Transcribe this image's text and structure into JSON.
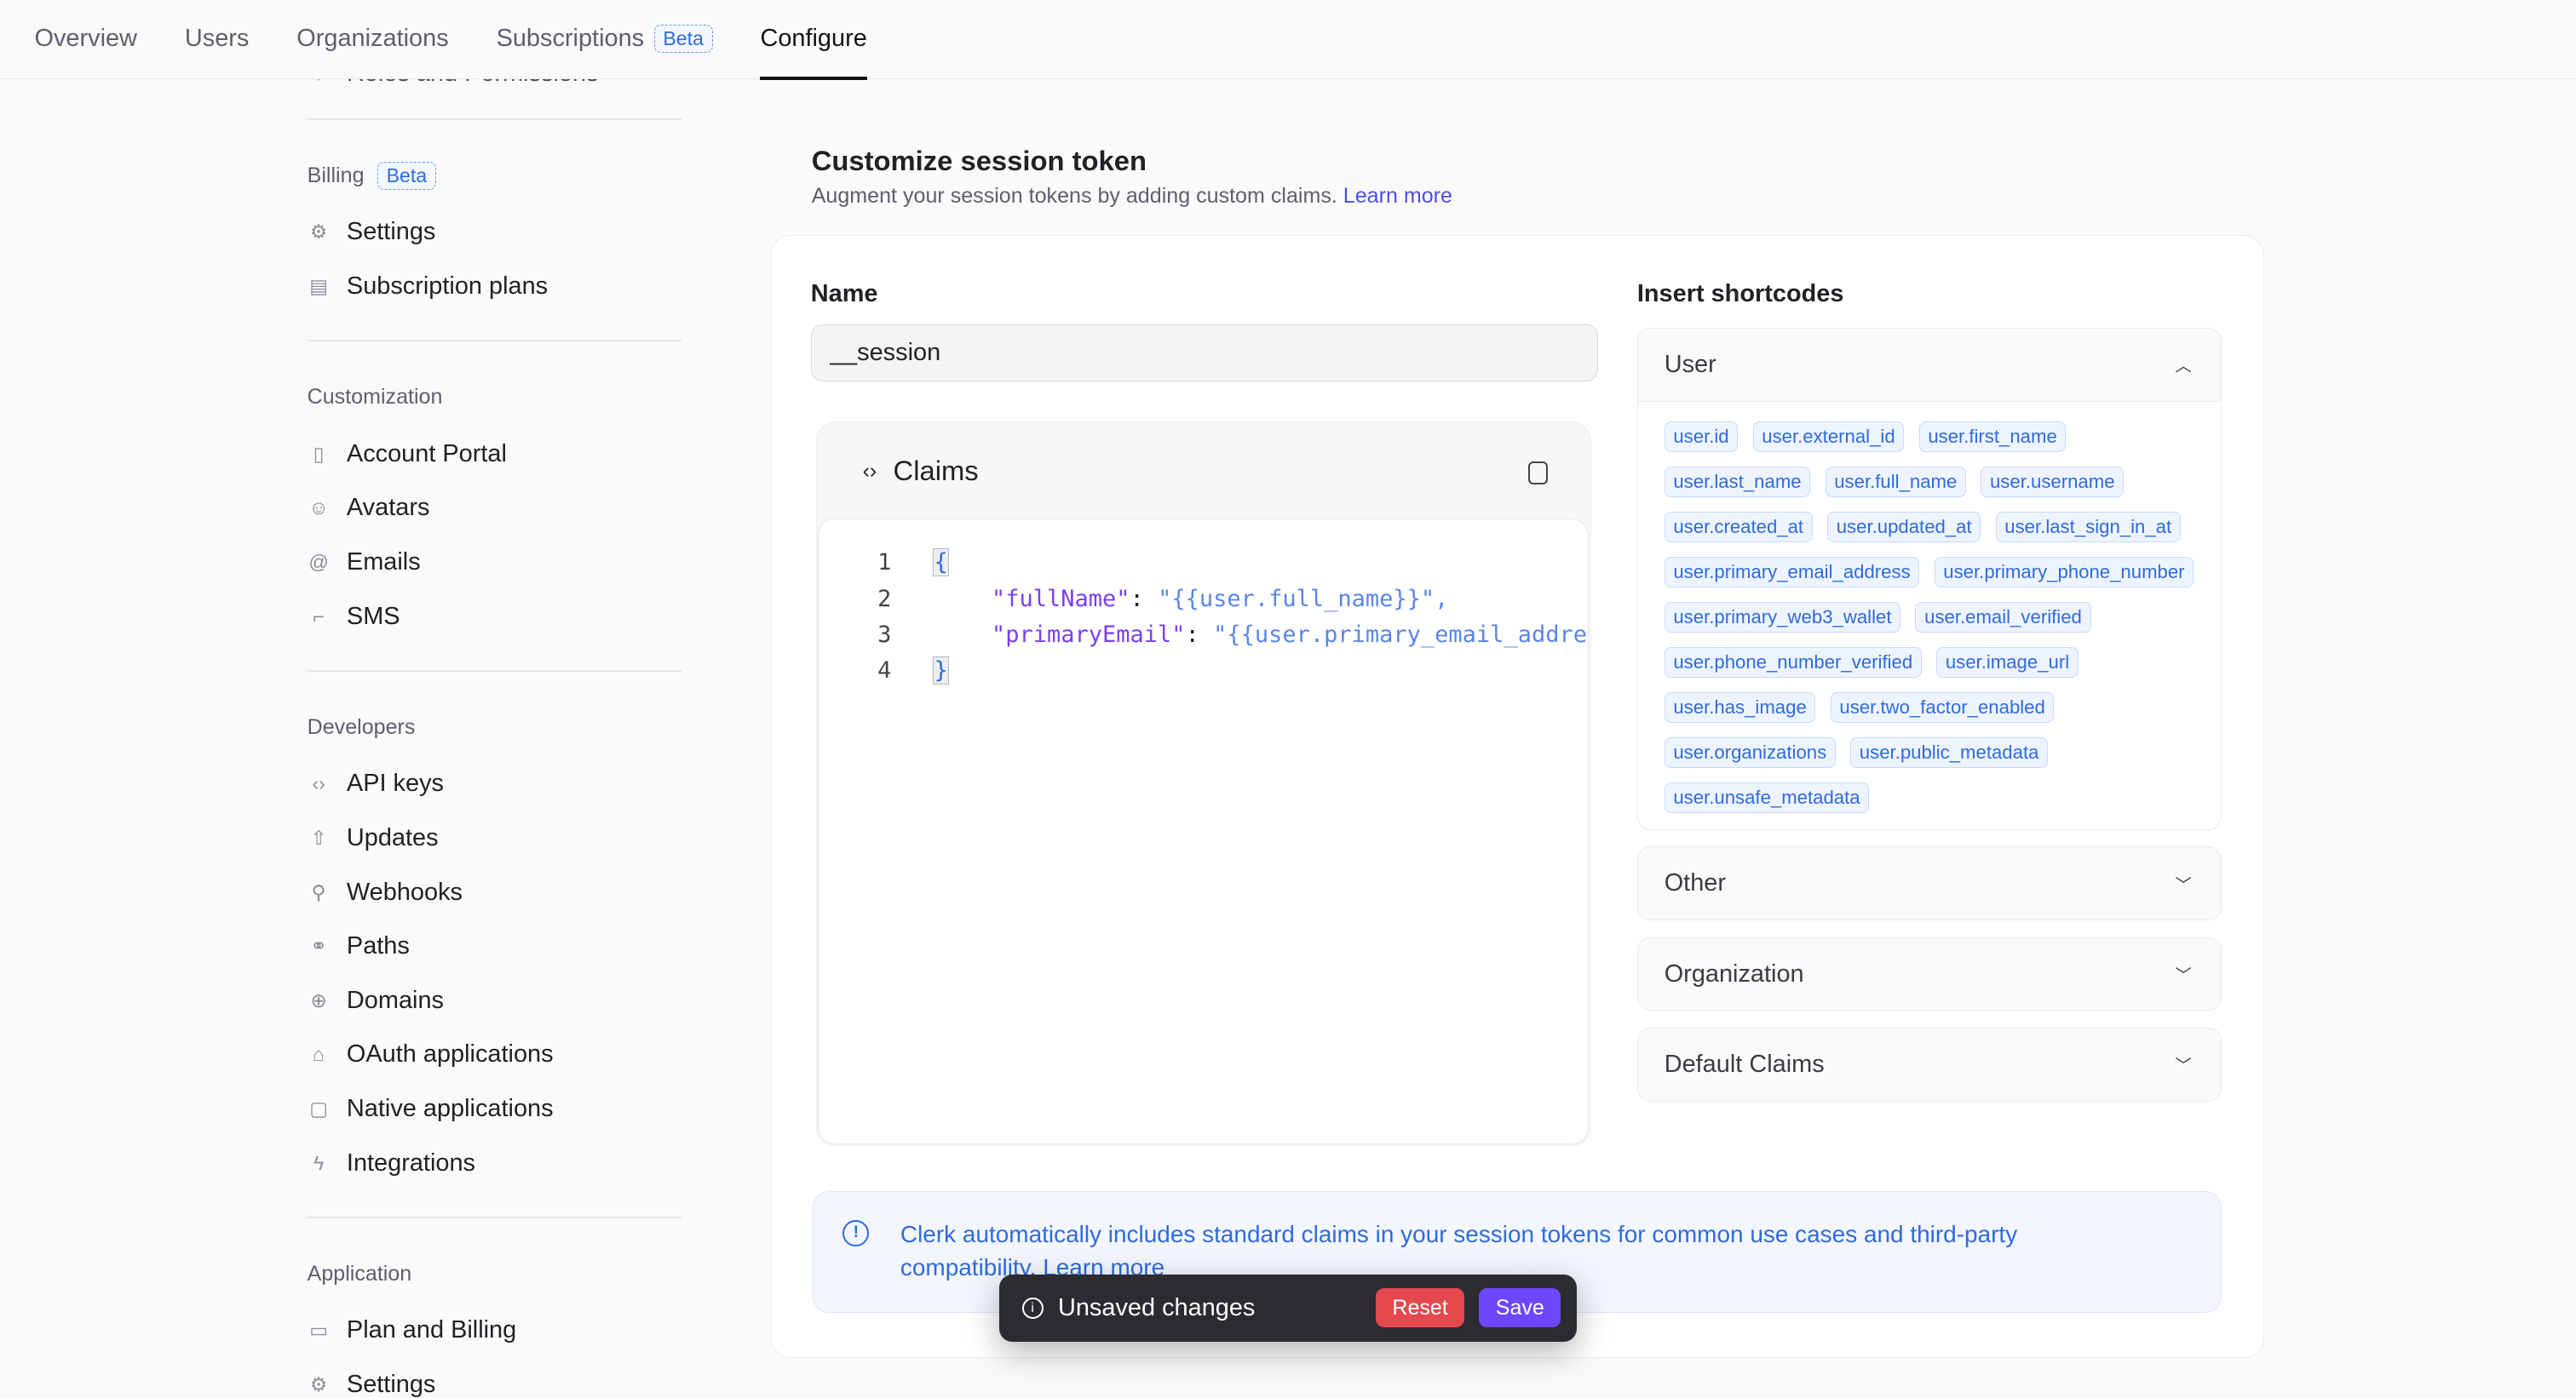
{
  "nav": {
    "tabs": [
      "Overview",
      "Users",
      "Organizations",
      "Subscriptions",
      "Configure"
    ],
    "beta": "Beta",
    "active": "Configure"
  },
  "sidebar": {
    "clipped_item": "Roles and Permissions",
    "sections": [
      {
        "title": "Billing",
        "beta": "Beta",
        "items": [
          {
            "label": "Settings",
            "icon": "gear-icon"
          },
          {
            "label": "Subscription plans",
            "icon": "plans-icon"
          }
        ]
      },
      {
        "title": "Customization",
        "items": [
          {
            "label": "Account Portal",
            "icon": "portal-icon"
          },
          {
            "label": "Avatars",
            "icon": "avatar-icon"
          },
          {
            "label": "Emails",
            "icon": "at-icon"
          },
          {
            "label": "SMS",
            "icon": "sms-icon"
          }
        ]
      },
      {
        "title": "Developers",
        "items": [
          {
            "label": "API keys",
            "icon": "code-icon"
          },
          {
            "label": "Updates",
            "icon": "upload-icon"
          },
          {
            "label": "Webhooks",
            "icon": "webhook-icon"
          },
          {
            "label": "Paths",
            "icon": "paths-icon"
          },
          {
            "label": "Domains",
            "icon": "globe-icon"
          },
          {
            "label": "OAuth applications",
            "icon": "oauth-icon"
          },
          {
            "label": "Native applications",
            "icon": "native-app-icon"
          },
          {
            "label": "Integrations",
            "icon": "bolt-icon"
          }
        ]
      },
      {
        "title": "Application",
        "items": [
          {
            "label": "Plan and Billing",
            "icon": "card-icon"
          },
          {
            "label": "Settings",
            "icon": "gear-icon"
          }
        ]
      }
    ]
  },
  "main": {
    "title": "Customize session token",
    "subtitle": "Augment your session tokens by adding custom claims.",
    "learn_more": "Learn more",
    "name_label": "Name",
    "name_value": "__session",
    "claims_title": "Claims",
    "code": [
      {
        "n": "1",
        "text": "{"
      },
      {
        "n": "2",
        "key": "\"fullName\"",
        "value": "\"{{user.full_name}}\","
      },
      {
        "n": "3",
        "key": "\"primaryEmail\"",
        "value": "\"{{user.primary_email_address}}\""
      },
      {
        "n": "4",
        "text": "}"
      }
    ],
    "shortcodes_label": "Insert shortcodes",
    "user_section": "User",
    "user_chips": [
      "user.id",
      "user.external_id",
      "user.first_name",
      "user.last_name",
      "user.full_name",
      "user.username",
      "user.created_at",
      "user.updated_at",
      "user.last_sign_in_at",
      "user.primary_email_address",
      "user.primary_phone_number",
      "user.primary_web3_wallet",
      "user.email_verified",
      "user.phone_number_verified",
      "user.image_url",
      "user.has_image",
      "user.two_factor_enabled",
      "user.organizations",
      "user.public_metadata",
      "user.unsafe_metadata"
    ],
    "other_sections": [
      "Other",
      "Organization",
      "Default Claims"
    ],
    "info": "Clerk automatically includes standard claims in your session tokens for common use cases and third-party compatibility.",
    "info_link": "Learn more"
  },
  "toast": {
    "text": "Unsaved changes",
    "reset": "Reset",
    "save": "Save",
    "reset_color": "#e5484d",
    "save_color": "#6c47ff"
  }
}
